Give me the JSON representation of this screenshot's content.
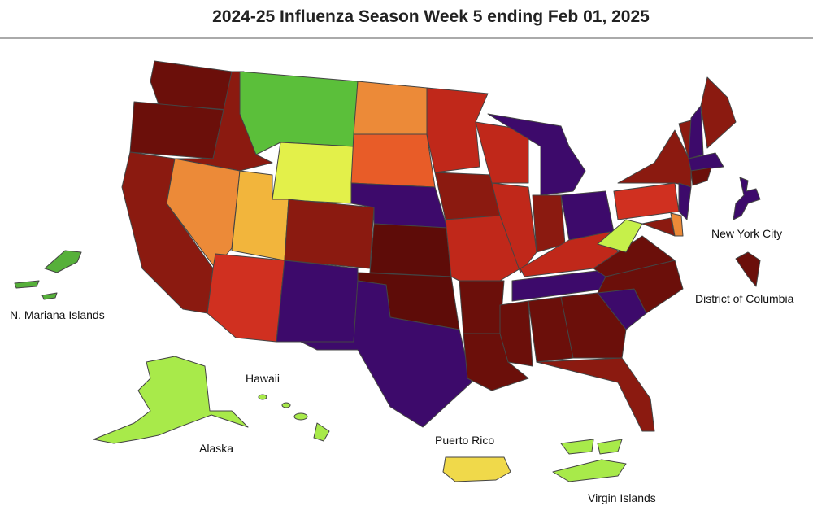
{
  "title": "2024-25 Influenza Season Week 5 ending Feb 01, 2025",
  "labels": {
    "mariana": "N. Mariana Islands",
    "hawaii": "Hawaii",
    "alaska": "Alaska",
    "puerto_rico": "Puerto Rico",
    "virgin_islands": "Virgin Islands",
    "nyc": "New York City",
    "dc": "District of Columbia"
  }
}
